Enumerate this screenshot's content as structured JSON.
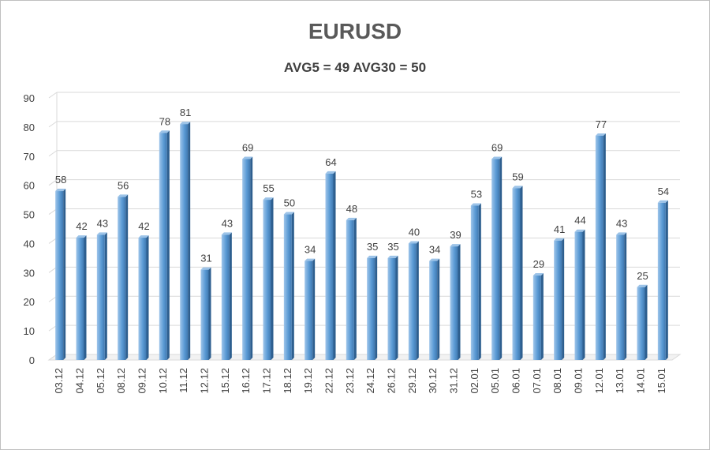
{
  "chart_data": {
    "type": "bar",
    "title": "EURUSD",
    "subtitle": "AVG5 = 49 AVG30 = 50",
    "xlabel": "",
    "ylabel": "",
    "ylim": [
      0,
      90
    ],
    "yticks": [
      0,
      10,
      20,
      30,
      40,
      50,
      60,
      70,
      80,
      90
    ],
    "grid": true,
    "bar_color": "#5b9bd5",
    "categories": [
      "03.12",
      "04.12",
      "05.12",
      "08.12",
      "09.12",
      "10.12",
      "11.12",
      "12.12",
      "15.12",
      "16.12",
      "17.12",
      "18.12",
      "19.12",
      "22.12",
      "23.12",
      "24.12",
      "26.12",
      "29.12",
      "30.12",
      "31.12",
      "02.01",
      "05.01",
      "06.01",
      "07.01",
      "08.01",
      "09.01",
      "12.01",
      "13.01",
      "14.01",
      "15.01"
    ],
    "values": [
      58,
      42,
      43,
      56,
      42,
      78,
      81,
      31,
      43,
      69,
      55,
      50,
      34,
      64,
      48,
      35,
      35,
      40,
      34,
      39,
      53,
      69,
      59,
      29,
      41,
      44,
      77,
      43,
      25,
      54
    ]
  }
}
